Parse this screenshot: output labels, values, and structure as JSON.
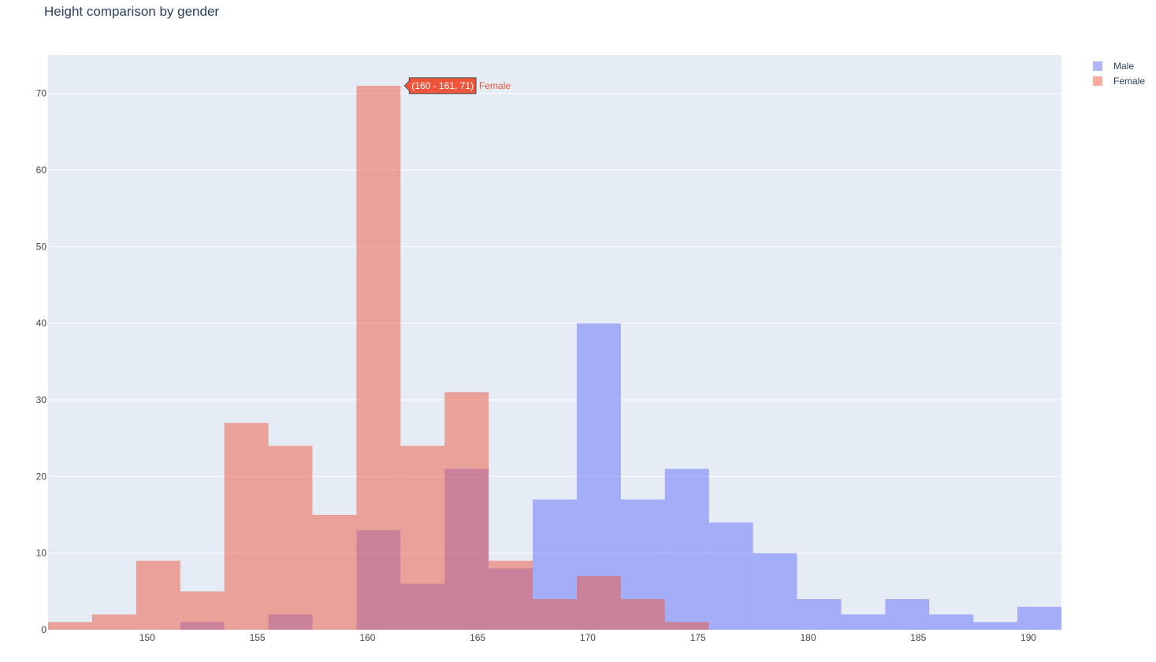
{
  "chart_data": {
    "type": "bar",
    "title": "Height comparison by gender",
    "xlabel": "",
    "ylabel": "",
    "bin_width": 2,
    "xlim": [
      145.5,
      191.5
    ],
    "ylim": [
      0,
      75
    ],
    "x_ticks": [
      150,
      155,
      160,
      165,
      170,
      175,
      180,
      185,
      190
    ],
    "y_ticks": [
      0,
      10,
      20,
      30,
      40,
      50,
      60,
      70
    ],
    "grid": true,
    "legend_position": "top-right",
    "barmode": "overlay",
    "series": [
      {
        "name": "Male",
        "color": "#636efa",
        "bin_starts": [
          151.5,
          155.5,
          159.5,
          161.5,
          163.5,
          165.5,
          167.5,
          169.5,
          171.5,
          173.5,
          175.5,
          177.5,
          179.5,
          181.5,
          183.5,
          185.5,
          187.5,
          189.5
        ],
        "values": [
          1,
          2,
          13,
          6,
          21,
          8,
          17,
          40,
          17,
          21,
          14,
          10,
          4,
          2,
          4,
          2,
          1,
          3
        ]
      },
      {
        "name": "Female",
        "color": "#ef553b",
        "bin_starts": [
          145.5,
          147.5,
          149.5,
          151.5,
          153.5,
          155.5,
          157.5,
          159.5,
          161.5,
          163.5,
          165.5,
          167.5,
          169.5,
          171.5,
          173.5
        ],
        "values": [
          1,
          2,
          9,
          5,
          27,
          24,
          15,
          71,
          24,
          31,
          9,
          4,
          7,
          4,
          1
        ]
      }
    ]
  },
  "tooltip": {
    "value_text": "(160 - 161, 71)",
    "series_name": "Female",
    "color": "#ef553b",
    "series_index": 1,
    "bin_index": 7
  }
}
